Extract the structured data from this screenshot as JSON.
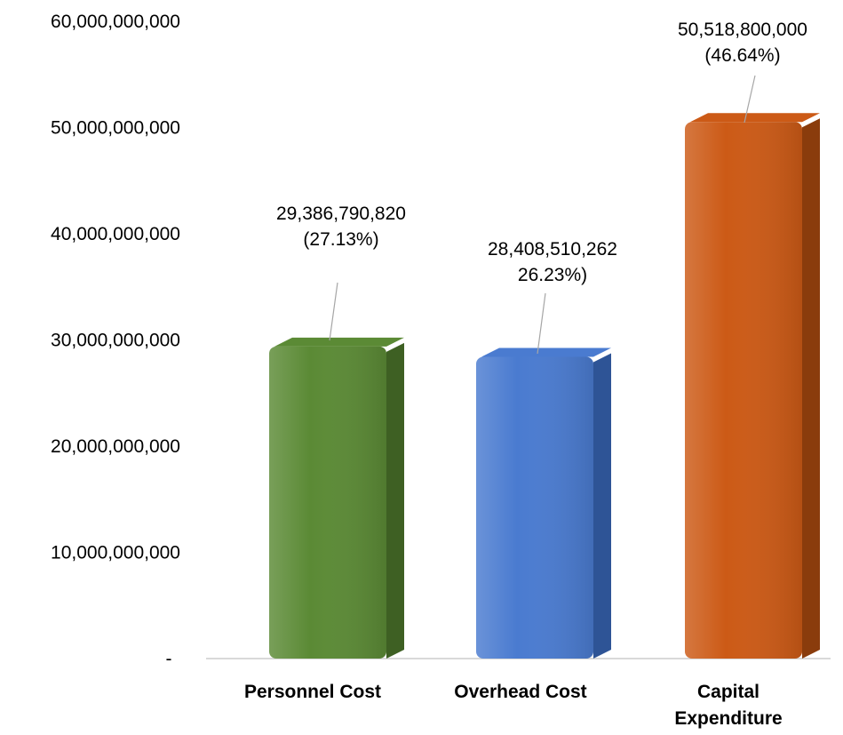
{
  "chart_data": {
    "type": "bar",
    "categories": [
      {
        "label": "Personnel Cost",
        "lines": [
          "Personnel Cost"
        ]
      },
      {
        "label": "Overhead Cost",
        "lines": [
          "Overhead Cost"
        ]
      },
      {
        "label": "Capital Expenditure",
        "lines": [
          "Capital",
          "Expenditure"
        ]
      }
    ],
    "values": [
      29386790820,
      28408510262,
      50518800000
    ],
    "data_labels": [
      [
        "29,386,790,820",
        "(27.13%)"
      ],
      [
        "28,408,510,262",
        "26.23%)"
      ],
      [
        "50,518,800,000",
        "(46.64%)"
      ]
    ],
    "colors": [
      "#5b8a35",
      "#4a7bd0",
      "#cc5a16"
    ],
    "side_colors": [
      "#3e6023",
      "#2e5496",
      "#8a3c0c"
    ],
    "ylim": [
      0,
      60000000000
    ],
    "yticks": [
      {
        "value": 0,
        "label": "-"
      },
      {
        "value": 10000000000,
        "label": "10,000,000,000"
      },
      {
        "value": 20000000000,
        "label": "20,000,000,000"
      },
      {
        "value": 30000000000,
        "label": "30,000,000,000"
      },
      {
        "value": 40000000000,
        "label": "40,000,000,000"
      },
      {
        "value": 50000000000,
        "label": "50,000,000,000"
      },
      {
        "value": 60000000000,
        "label": "60,000,000,000"
      }
    ],
    "grid": false,
    "legend": "none",
    "title": "",
    "xlabel": "",
    "ylabel": ""
  }
}
